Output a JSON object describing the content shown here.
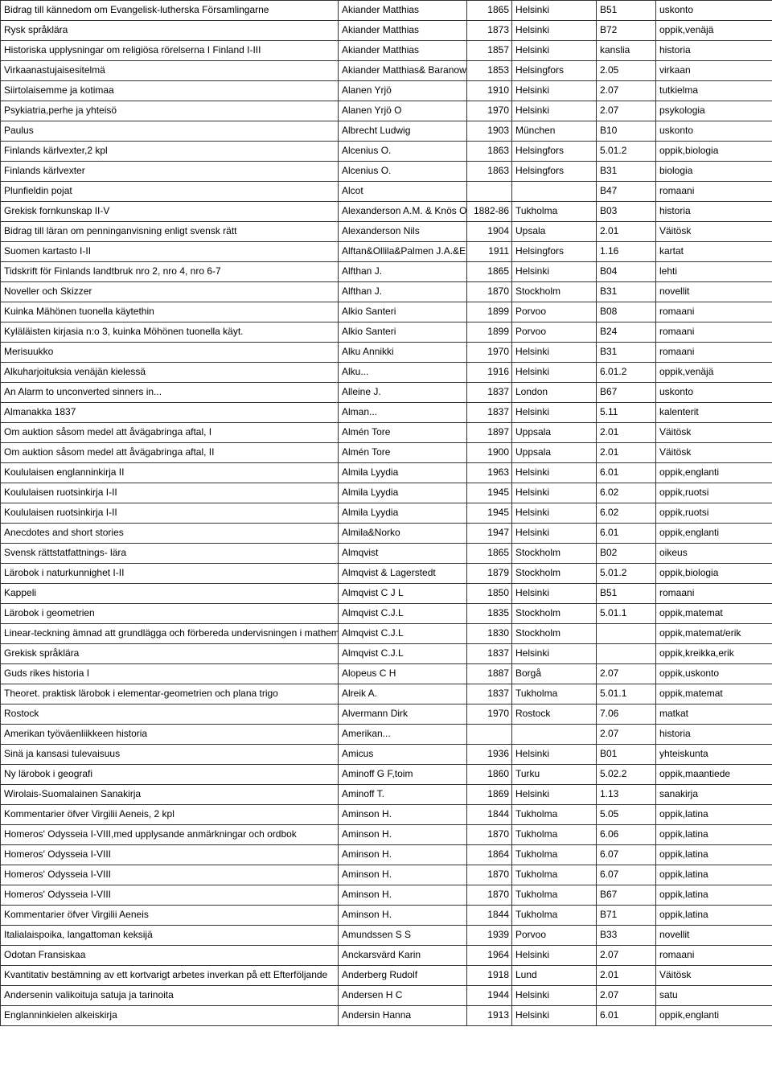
{
  "columns": [
    "title",
    "author",
    "year",
    "place",
    "code",
    "category"
  ],
  "rows": [
    [
      "Bidrag till kännedom om Evangelisk-lutherska Församlingarne",
      "Akiander Matthias",
      "1865",
      "Helsinki",
      "B51",
      "uskonto"
    ],
    [
      "Rysk språklära",
      "Akiander Matthias",
      "1873",
      "Helsinki",
      "B72",
      "oppik,venäjä"
    ],
    [
      "Historiska upplysningar om religiösa rörelserna I Finland I-III",
      "Akiander Matthias",
      "1857",
      "Helsinki",
      "kanslia",
      "historia"
    ],
    [
      "Virkaanastujaisesitelmä",
      "Akiander Matthias& Baranowsk",
      "1853",
      "Helsingfors",
      "2.05",
      "virkaan"
    ],
    [
      "Siirtolaisemme ja kotimaa",
      "Alanen Yrjö",
      "1910",
      "Helsinki",
      "2.07",
      "tutkielma"
    ],
    [
      "Psykiatria,perhe ja yhteisö",
      "Alanen Yrjö O",
      "1970",
      "Helsinki",
      "2.07",
      "psykologia"
    ],
    [
      "Paulus",
      "Albrecht Ludwig",
      "1903",
      "München",
      "B10",
      "uskonto"
    ],
    [
      "Finlands kärlvexter,2 kpl",
      "Alcenius O.",
      "1863",
      "Helsingfors",
      "5.01.2",
      "oppik,biologia"
    ],
    [
      "Finlands kärlvexter",
      "Alcenius O.",
      "1863",
      "Helsingfors",
      "B31",
      "biologia"
    ],
    [
      "Plunfieldin pojat",
      "Alcot",
      "",
      "",
      "B47",
      "romaani"
    ],
    [
      "Grekisk fornkunskap II-V",
      "Alexanderson A.M. & Knös O.",
      "1882-86",
      "Tukholma",
      "B03",
      "historia"
    ],
    [
      "Bidrag till läran om penninganvisning enligt svensk rätt",
      "Alexanderson Nils",
      "1904",
      "Upsala",
      "2.01",
      "Väitösk"
    ],
    [
      "Suomen kartasto I-II",
      "Alftan&Ollila&Palmen J.A.&E.G",
      "1911",
      "Helsingfors",
      "1.16",
      "kartat"
    ],
    [
      "Tidskrift för Finlands landtbruk nro 2, nro 4, nro 6-7",
      "Alfthan J.",
      "1865",
      "Helsinki",
      "B04",
      "lehti"
    ],
    [
      "Noveller och Skizzer",
      "Alfthan J.",
      "1870",
      "Stockholm",
      "B31",
      "novellit"
    ],
    [
      "Kuinka Mähönen tuonella käytethin",
      "Alkio Santeri",
      "1899",
      "Porvoo",
      "B08",
      "romaani"
    ],
    [
      "Kyläläisten kirjasia n:o 3, kuinka Möhönen tuonella käyt.",
      "Alkio Santeri",
      "1899",
      "Porvoo",
      "B24",
      "romaani"
    ],
    [
      "Merisuukko",
      "Alku Annikki",
      "1970",
      "Helsinki",
      "B31",
      "romaani"
    ],
    [
      "Alkuharjoituksia venäjän kielessä",
      "Alku...",
      "1916",
      "Helsinki",
      "6.01.2",
      "oppik,venäjä"
    ],
    [
      "An Alarm to unconverted sinners in...",
      "Alleine J.",
      "1837",
      "London",
      "B67",
      "uskonto"
    ],
    [
      "Almanakka 1837",
      "Alman...",
      "1837",
      "Helsinki",
      "5.11",
      "kalenterit"
    ],
    [
      "Om auktion såsom medel att åvägabringa aftal, I",
      "Almén Tore",
      "1897",
      "Uppsala",
      "2.01",
      "Väitösk"
    ],
    [
      "Om auktion såsom medel att åvägabringa aftal, II",
      "Almén Tore",
      "1900",
      "Uppsala",
      "2.01",
      "Väitösk"
    ],
    [
      "Koululaisen englanninkirja II",
      "Almila Lyydia",
      "1963",
      "Helsinki",
      "6.01",
      "oppik,englanti"
    ],
    [
      "Koululaisen ruotsinkirja I-II",
      "Almila Lyydia",
      "1945",
      "Helsinki",
      "6.02",
      "oppik,ruotsi"
    ],
    [
      "Koululaisen ruotsinkirja I-II",
      "Almila Lyydia",
      "1945",
      "Helsinki",
      "6.02",
      "oppik,ruotsi"
    ],
    [
      "Anecdotes and short stories",
      "Almila&Norko",
      "1947",
      "Helsinki",
      "6.01",
      "oppik,englanti"
    ],
    [
      "Svensk rättstatfattnings- lära",
      "Almqvist",
      "1865",
      "Stockholm",
      "B02",
      "oikeus"
    ],
    [
      "Lärobok i naturkunnighet I-II",
      "Almqvist & Lagerstedt",
      "1879",
      "Stockholm",
      "5.01.2",
      "oppik,biologia"
    ],
    [
      "Kappeli",
      "Almqvist C J L",
      "1850",
      "Helsinki",
      "B51",
      "romaani"
    ],
    [
      "Lärobok i geometrien",
      "Almqvist C.J.L",
      "1835",
      "Stockholm",
      "5.01.1",
      "oppik,matemat"
    ],
    [
      "Linear-teckning ämnad att grundlägga och förbereda undervisningen i mathem",
      "Almqvist C.J.L",
      "1830",
      "Stockholm",
      "",
      "oppik,matemat/erik"
    ],
    [
      "Grekisk språklära",
      "Almqvist C.J.L",
      "1837",
      "Helsinki",
      "",
      "oppik,kreikka,erik"
    ],
    [
      "Guds rikes historia I",
      "Alopeus C H",
      "1887",
      "Borgå",
      "2.07",
      "oppik,uskonto"
    ],
    [
      "Theoret. praktisk lärobok i elementar-geometrien och plana trigo",
      "Alreik A.",
      "1837",
      "Tukholma",
      "5.01.1",
      "oppik,matemat"
    ],
    [
      "Rostock",
      "Alvermann Dirk",
      "1970",
      "Rostock",
      "7.06",
      "matkat"
    ],
    [
      "Amerikan työväenliikkeen historia",
      "Amerikan...",
      "",
      "",
      "2.07",
      "historia"
    ],
    [
      "Sinä ja kansasi tulevaisuus",
      "Amicus",
      "1936",
      "Helsinki",
      "B01",
      "yhteiskunta"
    ],
    [
      "Ny lärobok i geografi",
      "Aminoff G F,toim",
      "1860",
      "Turku",
      "5.02.2",
      "oppik,maantiede"
    ],
    [
      "Wirolais-Suomalainen Sanakirja",
      "Aminoff T.",
      "1869",
      "Helsinki",
      "1.13",
      "sanakirja"
    ],
    [
      "Kommentarier öfver Virgilii Aeneis, 2 kpl",
      "Aminson H.",
      "1844",
      "Tukholma",
      "5.05",
      "oppik,latina"
    ],
    [
      "Homeros' Odysseia I-VIII,med upplysande anmärkningar och ordbok",
      "Aminson H.",
      "1870",
      "Tukholma",
      "6.06",
      "oppik,latina"
    ],
    [
      "Homeros' Odysseia I-VIII",
      "Aminson H.",
      "1864",
      "Tukholma",
      "6.07",
      "oppik,latina"
    ],
    [
      "Homeros' Odysseia I-VIII",
      "Aminson H.",
      "1870",
      "Tukholma",
      "6.07",
      "oppik,latina"
    ],
    [
      "Homeros' Odysseia I-VIII",
      "Aminson H.",
      "1870",
      "Tukholma",
      "B67",
      "oppik,latina"
    ],
    [
      "Kommentarier öfver Virgilii Aeneis",
      "Aminson H.",
      "1844",
      "Tukholma",
      "B71",
      "oppik,latina"
    ],
    [
      "Italialaispoika, langattoman keksijä",
      "Amundssen S S",
      "1939",
      "Porvoo",
      "B33",
      "novellit"
    ],
    [
      "Odotan Fransiskaa",
      "Anckarsvärd Karin",
      "1964",
      "Helsinki",
      "2.07",
      "romaani"
    ],
    [
      "Kvantitativ bestämning av ett kortvarigt arbetes inverkan på ett Efterföljande",
      "Anderberg Rudolf",
      "1918",
      "Lund",
      "2.01",
      "Väitösk"
    ],
    [
      "Andersenin valikoituja satuja ja tarinoita",
      "Andersen H C",
      "1944",
      "Helsinki",
      "2.07",
      "satu"
    ],
    [
      "Englanninkielen alkeiskirja",
      "Andersin Hanna",
      "1913",
      "Helsinki",
      "6.01",
      "oppik,englanti"
    ]
  ]
}
